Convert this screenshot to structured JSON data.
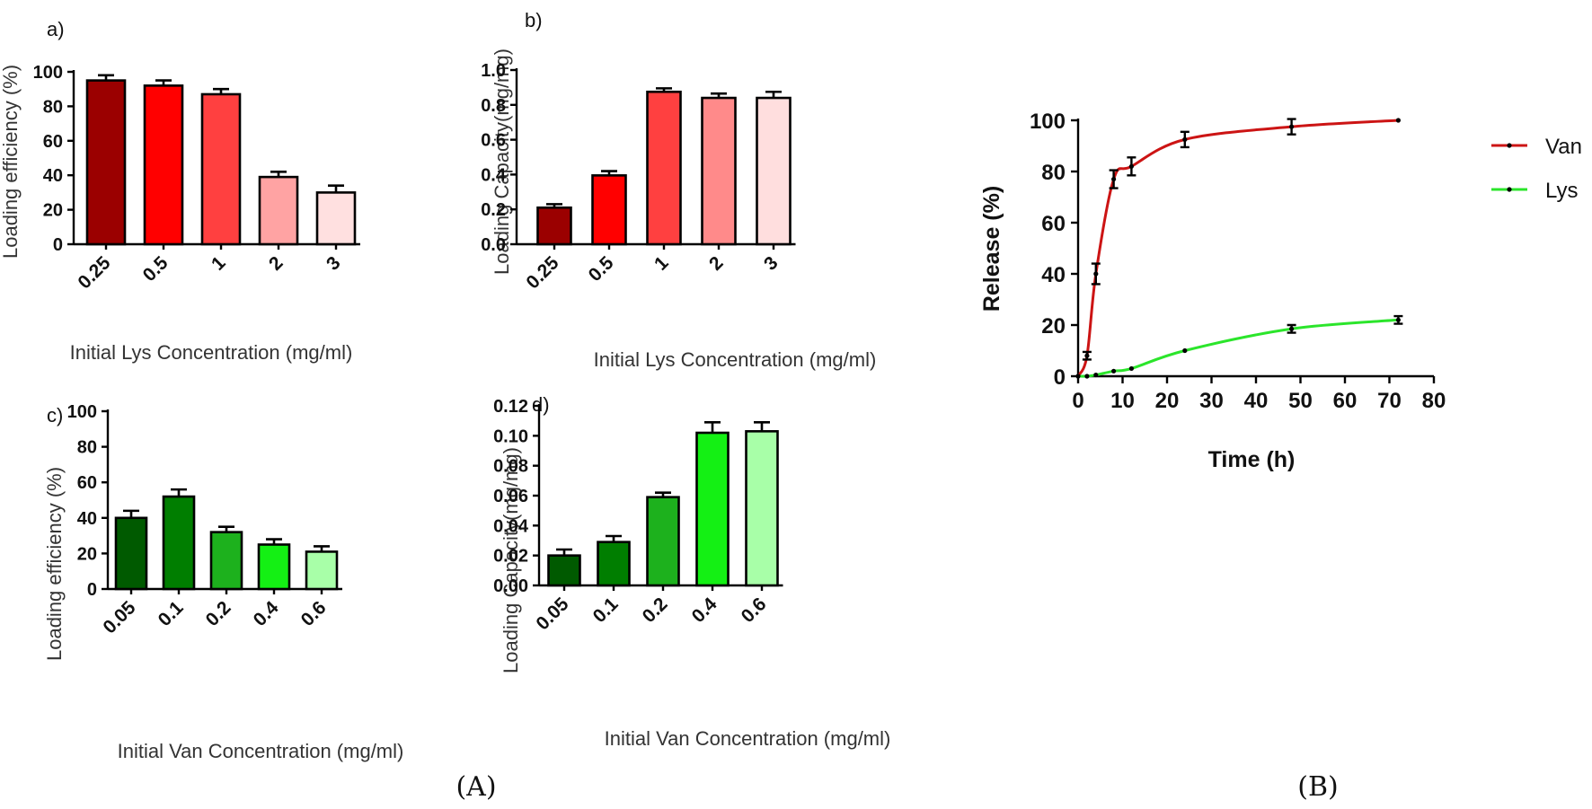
{
  "captions": {
    "A": "(A)",
    "B": "(B)"
  },
  "chart_data": [
    {
      "panel": "a)",
      "type": "bar",
      "categories": [
        "0.25",
        "0.5",
        "1",
        "2",
        "3"
      ],
      "values": [
        95,
        92,
        87,
        39,
        30
      ],
      "errors": [
        3,
        3,
        3,
        3,
        4
      ],
      "colors": [
        "#9b0000",
        "#ff0000",
        "#ff4040",
        "#ffa3a3",
        "#ffe0e0"
      ],
      "xlabel": "Initial Lys Concentration (mg/ml)",
      "ylabel": "Loading efficiency (%)",
      "ylim": [
        0,
        100
      ],
      "yticks": [
        0,
        20,
        40,
        60,
        80,
        100
      ],
      "ytick_labels": [
        "0",
        "20",
        "40",
        "60",
        "80",
        "100"
      ]
    },
    {
      "panel": "b)",
      "type": "bar",
      "categories": [
        "0.25",
        "0.5",
        "1",
        "2",
        "3"
      ],
      "values": [
        0.21,
        0.395,
        0.875,
        0.84,
        0.84
      ],
      "errors": [
        0.02,
        0.025,
        0.02,
        0.025,
        0.035
      ],
      "colors": [
        "#9b0000",
        "#ff0000",
        "#ff4040",
        "#ff8a8a",
        "#ffdede"
      ],
      "xlabel": "Initial Lys Concentration (mg/ml)",
      "ylabel": "Loading Capacity(mg/mg)",
      "ylim": [
        0,
        1.0
      ],
      "yticks": [
        0,
        0.2,
        0.4,
        0.6,
        0.8,
        1.0
      ],
      "ytick_labels": [
        "0.0",
        "0.2",
        "0.4",
        "0.6",
        "0.8",
        "1.0"
      ]
    },
    {
      "panel": "c)",
      "type": "bar",
      "categories": [
        "0.05",
        "0.1",
        "0.2",
        "0.4",
        "0.6"
      ],
      "values": [
        40,
        52,
        32,
        25,
        21
      ],
      "errors": [
        4,
        4,
        3,
        3,
        3
      ],
      "colors": [
        "#005a00",
        "#007e00",
        "#1db11d",
        "#14f014",
        "#a8ffa8"
      ],
      "xlabel": "Initial Van Concentration (mg/ml)",
      "ylabel": "Loading efficiency (%)",
      "ylim": [
        0,
        100
      ],
      "yticks": [
        0,
        20,
        40,
        60,
        80,
        100
      ],
      "ytick_labels": [
        "0",
        "20",
        "40",
        "60",
        "80",
        "100"
      ]
    },
    {
      "panel": "d)",
      "type": "bar",
      "categories": [
        "0.05",
        "0.1",
        "0.2",
        "0.4",
        "0.6"
      ],
      "values": [
        0.02,
        0.029,
        0.059,
        0.102,
        0.103
      ],
      "errors": [
        0.004,
        0.004,
        0.003,
        0.007,
        0.006
      ],
      "colors": [
        "#005a00",
        "#007e00",
        "#1db11d",
        "#14f014",
        "#a8ffa8"
      ],
      "xlabel": "Initial Van Concentration (mg/ml)",
      "ylabel": "Loading Capacity(mg/mg)",
      "ylim": [
        0,
        0.12
      ],
      "yticks": [
        0,
        0.02,
        0.04,
        0.06,
        0.08,
        0.1,
        0.12
      ],
      "ytick_labels": [
        "0.00",
        "0.02",
        "0.04",
        "0.06",
        "0.08",
        "0.10",
        "0.12"
      ]
    },
    {
      "panel": "(B)",
      "type": "line",
      "xlabel": "Time (h)",
      "ylabel": "Release (%)",
      "xlim": [
        0,
        80
      ],
      "ylim": [
        0,
        100
      ],
      "xticks": [
        0,
        10,
        20,
        30,
        40,
        50,
        60,
        70,
        80
      ],
      "yticks": [
        0,
        20,
        40,
        60,
        80,
        100
      ],
      "legend_position": "top-right",
      "series": [
        {
          "name": "Van",
          "color": "#cc1414",
          "x": [
            0,
            2,
            4,
            8,
            12,
            24,
            48,
            72
          ],
          "y": [
            0,
            8,
            40,
            77,
            82,
            92.5,
            97.5,
            100
          ],
          "err": [
            0,
            1.5,
            4,
            3.5,
            3.5,
            3,
            3,
            0
          ]
        },
        {
          "name": "Lys",
          "color": "#2be52b",
          "x": [
            0,
            2,
            4,
            8,
            12,
            24,
            48,
            72
          ],
          "y": [
            0,
            0,
            0.5,
            2,
            3,
            10,
            18.5,
            22
          ],
          "err": [
            0,
            0,
            0,
            0,
            0,
            0,
            1.5,
            1.5
          ]
        }
      ]
    }
  ]
}
